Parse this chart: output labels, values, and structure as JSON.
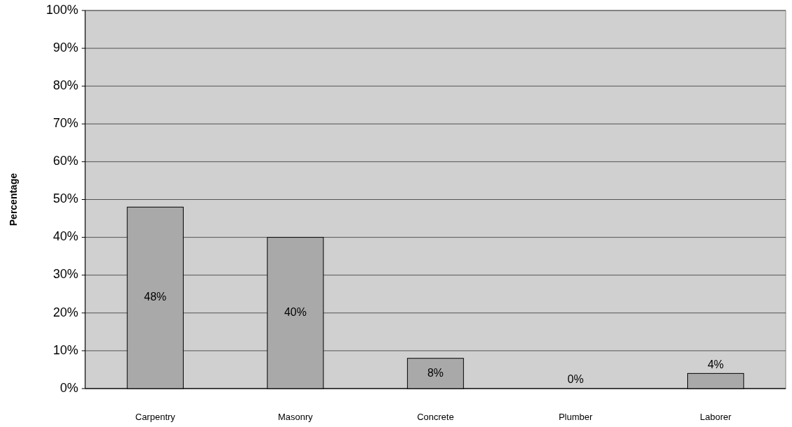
{
  "chart_data": {
    "type": "bar",
    "ylabel": "Percentage",
    "categories": [
      "Carpentry",
      "Masonry",
      "Concrete",
      "Plumber",
      "Laborer"
    ],
    "values": [
      48,
      40,
      8,
      0,
      4
    ],
    "value_labels": [
      "48%",
      "40%",
      "8%",
      "0%",
      "4%"
    ],
    "color": "#a9a9a9",
    "ylim": [
      0,
      100
    ],
    "yticks": [
      {
        "value": 0,
        "label": "0%"
      },
      {
        "value": 10,
        "label": "10%"
      },
      {
        "value": 20,
        "label": "20%"
      },
      {
        "value": 30,
        "label": "30%"
      },
      {
        "value": 40,
        "label": "40%"
      },
      {
        "value": 50,
        "label": "50%"
      },
      {
        "value": 60,
        "label": "60%"
      },
      {
        "value": 70,
        "label": "70%"
      },
      {
        "value": 80,
        "label": "80%"
      },
      {
        "value": 90,
        "label": "90%"
      },
      {
        "value": 100,
        "label": "100%"
      }
    ],
    "grid": "y"
  }
}
